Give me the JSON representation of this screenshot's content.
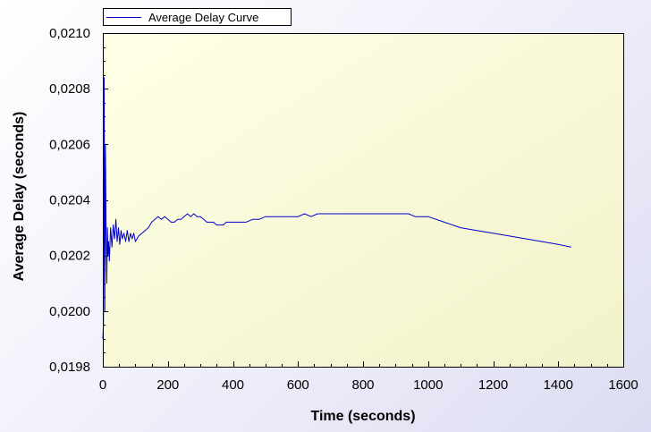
{
  "chart_data": {
    "type": "line",
    "title": "",
    "xlabel": "Time (seconds)",
    "ylabel": "Average Delay (seconds)",
    "xlim": [
      0,
      1600
    ],
    "ylim": [
      0.0198,
      0.021
    ],
    "x_ticks": [
      0,
      200,
      400,
      600,
      800,
      1000,
      1200,
      1400,
      1600
    ],
    "x_tick_labels": [
      "0",
      "200",
      "400",
      "600",
      "800",
      "1000",
      "1200",
      "1400",
      "1600"
    ],
    "y_ticks": [
      0.0198,
      0.02,
      0.0202,
      0.0204,
      0.0206,
      0.0208,
      0.021
    ],
    "y_tick_labels": [
      "0,0198",
      "0,0200",
      "0,0202",
      "0,0204",
      "0,0206",
      "0,0208",
      "0,0210"
    ],
    "grid": false,
    "legend_position": "top-left",
    "colors": {
      "series": "#0000cc",
      "plot_bg_start": "#ffffe6",
      "plot_bg_end": "#f2f2cc",
      "frame": "#000000"
    },
    "series": [
      {
        "name": "Average Delay Curve",
        "x": [
          0,
          2,
          4,
          6,
          8,
          10,
          12,
          14,
          16,
          18,
          20,
          24,
          28,
          32,
          36,
          40,
          44,
          48,
          52,
          56,
          60,
          65,
          70,
          75,
          80,
          85,
          90,
          95,
          100,
          110,
          120,
          130,
          140,
          150,
          160,
          170,
          180,
          190,
          200,
          210,
          220,
          230,
          240,
          250,
          260,
          270,
          280,
          290,
          300,
          310,
          320,
          330,
          340,
          350,
          360,
          370,
          380,
          400,
          420,
          440,
          460,
          480,
          500,
          520,
          540,
          560,
          580,
          600,
          620,
          640,
          660,
          680,
          700,
          720,
          740,
          760,
          780,
          800,
          820,
          840,
          860,
          880,
          900,
          920,
          940,
          960,
          980,
          1000,
          1050,
          1100,
          1150,
          1200,
          1250,
          1300,
          1350,
          1400,
          1440
        ],
        "values": [
          0.0199,
          0.01995,
          0.02084,
          0.02,
          0.0206,
          0.0203,
          0.0201,
          0.0203,
          0.0202,
          0.02025,
          0.02018,
          0.0203,
          0.02023,
          0.02031,
          0.02026,
          0.02033,
          0.02025,
          0.0203,
          0.02024,
          0.02029,
          0.02026,
          0.02028,
          0.02025,
          0.02029,
          0.02025,
          0.02028,
          0.02026,
          0.02028,
          0.02025,
          0.02027,
          0.02028,
          0.02029,
          0.0203,
          0.02032,
          0.02033,
          0.02034,
          0.02033,
          0.02034,
          0.02033,
          0.02032,
          0.02032,
          0.02033,
          0.02033,
          0.02034,
          0.02035,
          0.02034,
          0.02035,
          0.02034,
          0.02034,
          0.02033,
          0.02032,
          0.02032,
          0.02032,
          0.02031,
          0.02031,
          0.02031,
          0.02032,
          0.02032,
          0.02032,
          0.02032,
          0.02033,
          0.02033,
          0.02034,
          0.02034,
          0.02034,
          0.02034,
          0.02034,
          0.02034,
          0.02035,
          0.02034,
          0.02035,
          0.02035,
          0.02035,
          0.02035,
          0.02035,
          0.02035,
          0.02035,
          0.02035,
          0.02035,
          0.02035,
          0.02035,
          0.02035,
          0.02035,
          0.02035,
          0.02035,
          0.02034,
          0.02034,
          0.02034,
          0.02032,
          0.0203,
          0.02029,
          0.02028,
          0.02027,
          0.02026,
          0.02025,
          0.02024,
          0.02023
        ]
      }
    ]
  }
}
